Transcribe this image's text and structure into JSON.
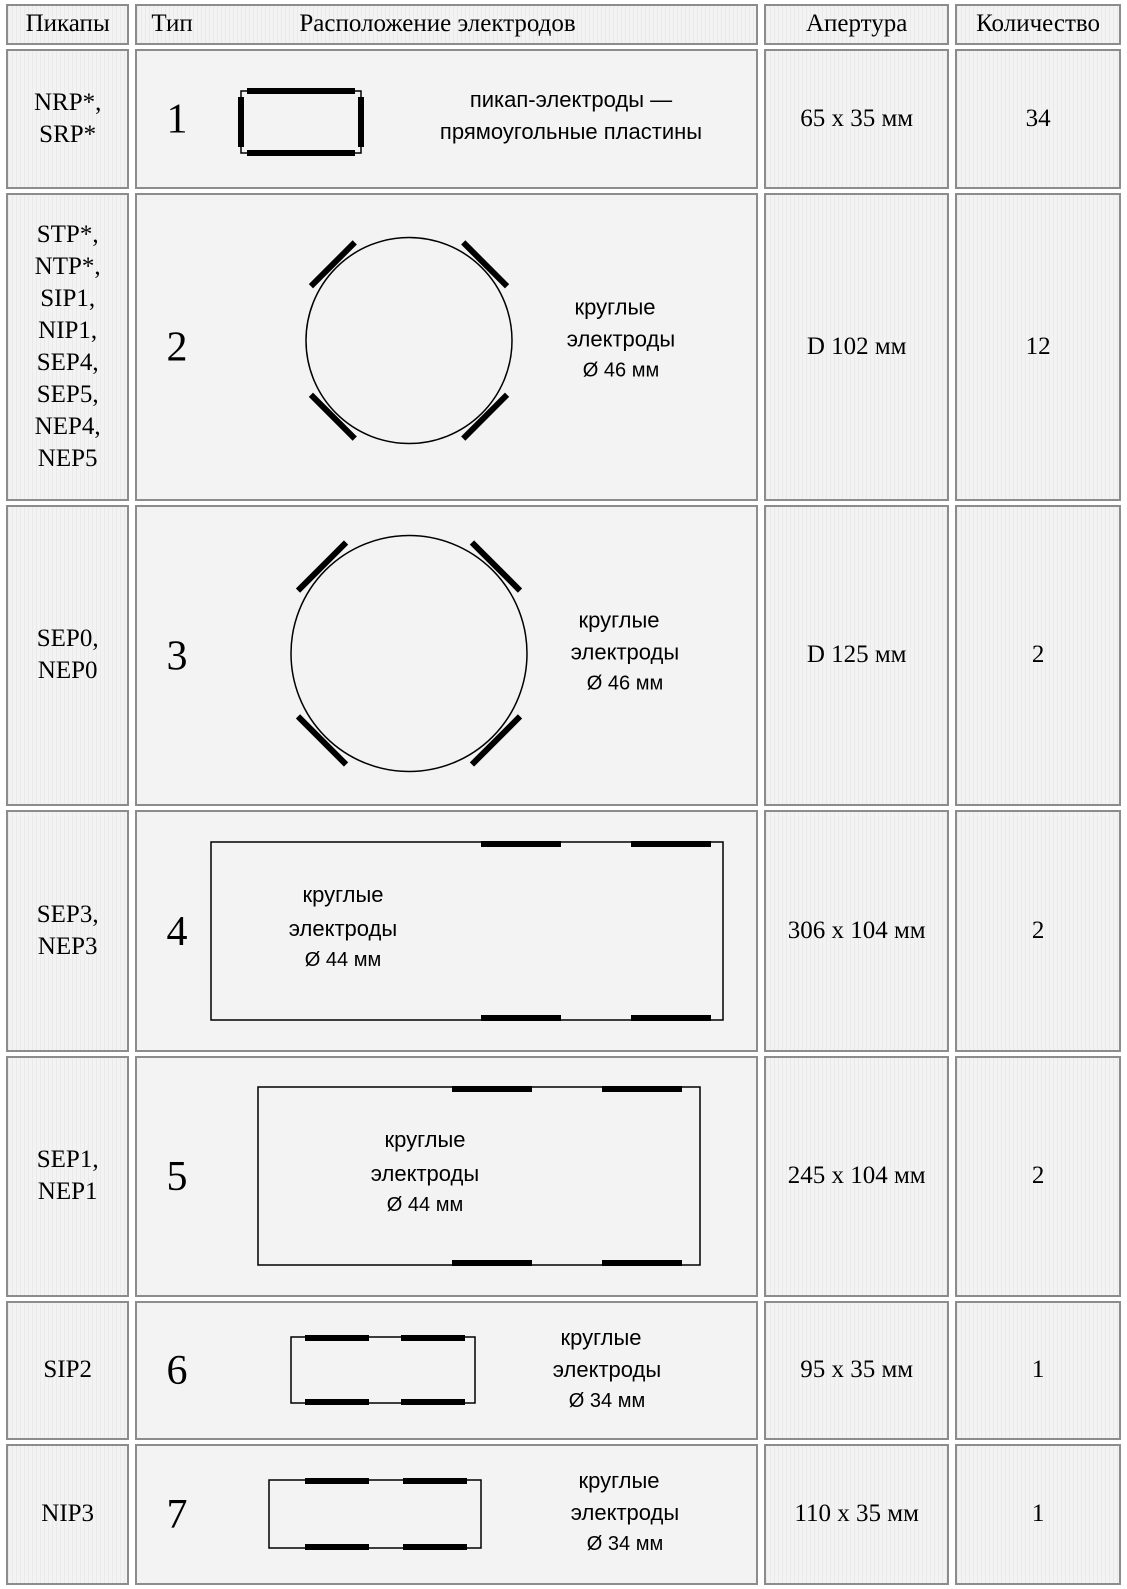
{
  "header": {
    "pickups": "Пикапы",
    "type": "Тип",
    "layout": "Расположение электродов",
    "aperture": "Апертура",
    "count": "Количество"
  },
  "rows": [
    {
      "pickups": [
        "NRP*,",
        "SRP*"
      ],
      "type": "1",
      "diagram": "rect-plates",
      "label": [
        "пикап-электроды —",
        "прямоугольные пластины"
      ],
      "diameter": "",
      "aperture": "65 x 35 мм",
      "count": "34"
    },
    {
      "pickups": [
        "STP*,",
        "NTP*,",
        "SIP1,",
        "NIP1,",
        "SEP4,",
        "SEP5,",
        "NEP4,",
        "NEP5"
      ],
      "type": "2",
      "diagram": "circle",
      "label": [
        "круглые",
        "электроды"
      ],
      "diameter": "Ø 46 мм",
      "aperture": "D 102 мм",
      "count": "12"
    },
    {
      "pickups": [
        "SEP0,",
        "NEP0"
      ],
      "type": "3",
      "diagram": "circle",
      "label": [
        "круглые",
        "электроды"
      ],
      "diameter": "Ø 46 мм",
      "aperture": "D 125 мм",
      "count": "2"
    },
    {
      "pickups": [
        "SEP3,",
        "NEP3"
      ],
      "type": "4",
      "diagram": "wide-rect",
      "label": [
        "круглые",
        "электроды"
      ],
      "diameter": "Ø 44 мм",
      "aperture": "306 x 104 мм",
      "count": "2"
    },
    {
      "pickups": [
        "SEP1,",
        "NEP1"
      ],
      "type": "5",
      "diagram": "wide-rect",
      "label": [
        "круглые",
        "электроды"
      ],
      "diameter": "Ø 44 мм",
      "aperture": "245 x 104 мм",
      "count": "2"
    },
    {
      "pickups": [
        "SIP2"
      ],
      "type": "6",
      "diagram": "small-rect",
      "label": [
        "круглые",
        "электроды"
      ],
      "diameter": "Ø 34 мм",
      "aperture": "95 x 35 мм",
      "count": "1"
    },
    {
      "pickups": [
        "NIP3"
      ],
      "type": "7",
      "diagram": "small-rect",
      "label": [
        "круглые",
        "электроды"
      ],
      "diameter": "Ø 34 мм",
      "aperture": "110 x 35 мм",
      "count": "1"
    }
  ]
}
